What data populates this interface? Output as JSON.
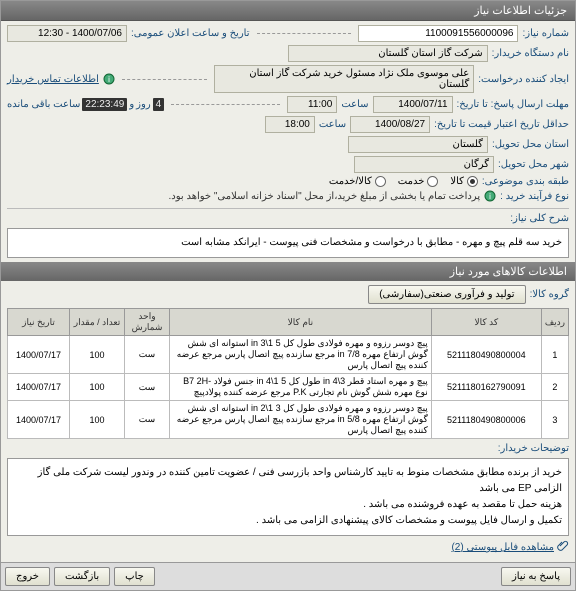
{
  "panel_title": "جزئیات اطلاعات نیاز",
  "fields": {
    "need_no_label": "شماره نیاز:",
    "need_no": "1100091556000096",
    "announce_label": "تاریخ و ساعت اعلان عمومی:",
    "announce_val": "1400/07/06 - 12:30",
    "buyer_label": "نام دستگاه خریدار:",
    "buyer_val": "شرکت گاز استان گلستان",
    "requester_label": "ایجاد کننده درخواست:",
    "requester_val": "علی موسوی ملک نژاد مسئول خرید شرکت گاز استان گلستان",
    "contact_link": "اطلاعات تماس خریدار",
    "deadline_send_label": "مهلت ارسال پاسخ: تا تاریخ:",
    "deadline_send_date": "1400/07/11",
    "time_label": "ساعت",
    "deadline_send_time": "11:00",
    "remain_label": "ساعت باقی مانده",
    "and_label": "و",
    "day_label": "روز",
    "remain_days": "4",
    "remain_time": "22:23:49",
    "validity_label": "حداقل تاریخ اعتبار قیمت تا تاریخ:",
    "validity_date": "1400/08/27",
    "validity_time": "18:00",
    "province_label": "استان محل تحویل:",
    "province_val": "گلستان",
    "city_label": "شهر محل تحویل:",
    "city_val": "گرگان",
    "category_label": "طبقه بندی موضوعی:",
    "cat_goods": "کالا",
    "cat_service": "خدمت",
    "cat_both": "کالا/خدمت",
    "process_label": "نوع فرآیند خرید :",
    "process_note": "پرداخت تمام یا بخشی از مبلغ خرید،از محل \"اسناد خزانه اسلامی\" خواهد بود.",
    "desc_label": "شرح کلی نیاز:",
    "desc_text": "خرید سه قلم پیچ و مهره - مطابق با درخواست و مشخصات فنی پیوست - ایرانکد مشابه است",
    "items_header": "اطلاعات کالاهای مورد نیاز",
    "group_label": "گروه کالا:",
    "group_btn": "تولید و فرآوری صنعتی(سفارشی)",
    "table": {
      "headers": [
        "ردیف",
        "کد کالا",
        "نام کالا",
        "واحد شمارش",
        "تعداد / مقدار",
        "تاریخ نیاز"
      ],
      "rows": [
        [
          "1",
          "5211180490800004",
          "پیچ دوسر رزوه و مهره فولادی طول کل 5 1\\3 in استوانه ای شش گوش ارتفاع مهره 7/8 in مرجع سازنده پیچ اتصال پارس مرجع عرضه کننده پیچ اتصال پارس",
          "ست",
          "100",
          "1400/07/17"
        ],
        [
          "2",
          "5211180162790091",
          "پیچ و مهره استاد قطر 3\\4 in طول کل 5 1\\4 in جنس فولاد -B7 2H نوع مهره شش گوش نام تجارتی P.K مرجع عرضه کننده پولادپیچ",
          "ست",
          "100",
          "1400/07/17"
        ],
        [
          "3",
          "5211180490800006",
          "پیچ دوسر رزوه و مهره فولادی طول کل 3 1\\2 in استوانه ای شش گوش ارتفاع مهره 5/8 in مرجع سازنده پیچ اتصال پارس مرجع عرضه کننده پیچ اتصال پارس",
          "ست",
          "100",
          "1400/07/17"
        ]
      ]
    },
    "notes_label": "توضیحات خریدار:",
    "notes_text": "خرید از برنده مطابق مشخصات منوط به تایید کارشناس واحد بازرسی فنی / عضویت تامین کننده در وندور لیست شرکت ملی گاز الزامی EP می باشد\nهزینه حمل تا مقصد به عهده فروشنده می باشد .\nتکمیل و ارسال فایل پیوست و مشخصات کالای پیشنهادی الزامی می باشد .",
    "attach_label": "مشاهده فایل پیوستی (2)"
  },
  "buttons": {
    "respond": "پاسخ به نیاز",
    "print": "چاپ",
    "back": "بازگشت",
    "exit": "خروج"
  },
  "colors": {
    "header_bg": "#777",
    "label": "#1a4d7a",
    "border": "#999"
  }
}
